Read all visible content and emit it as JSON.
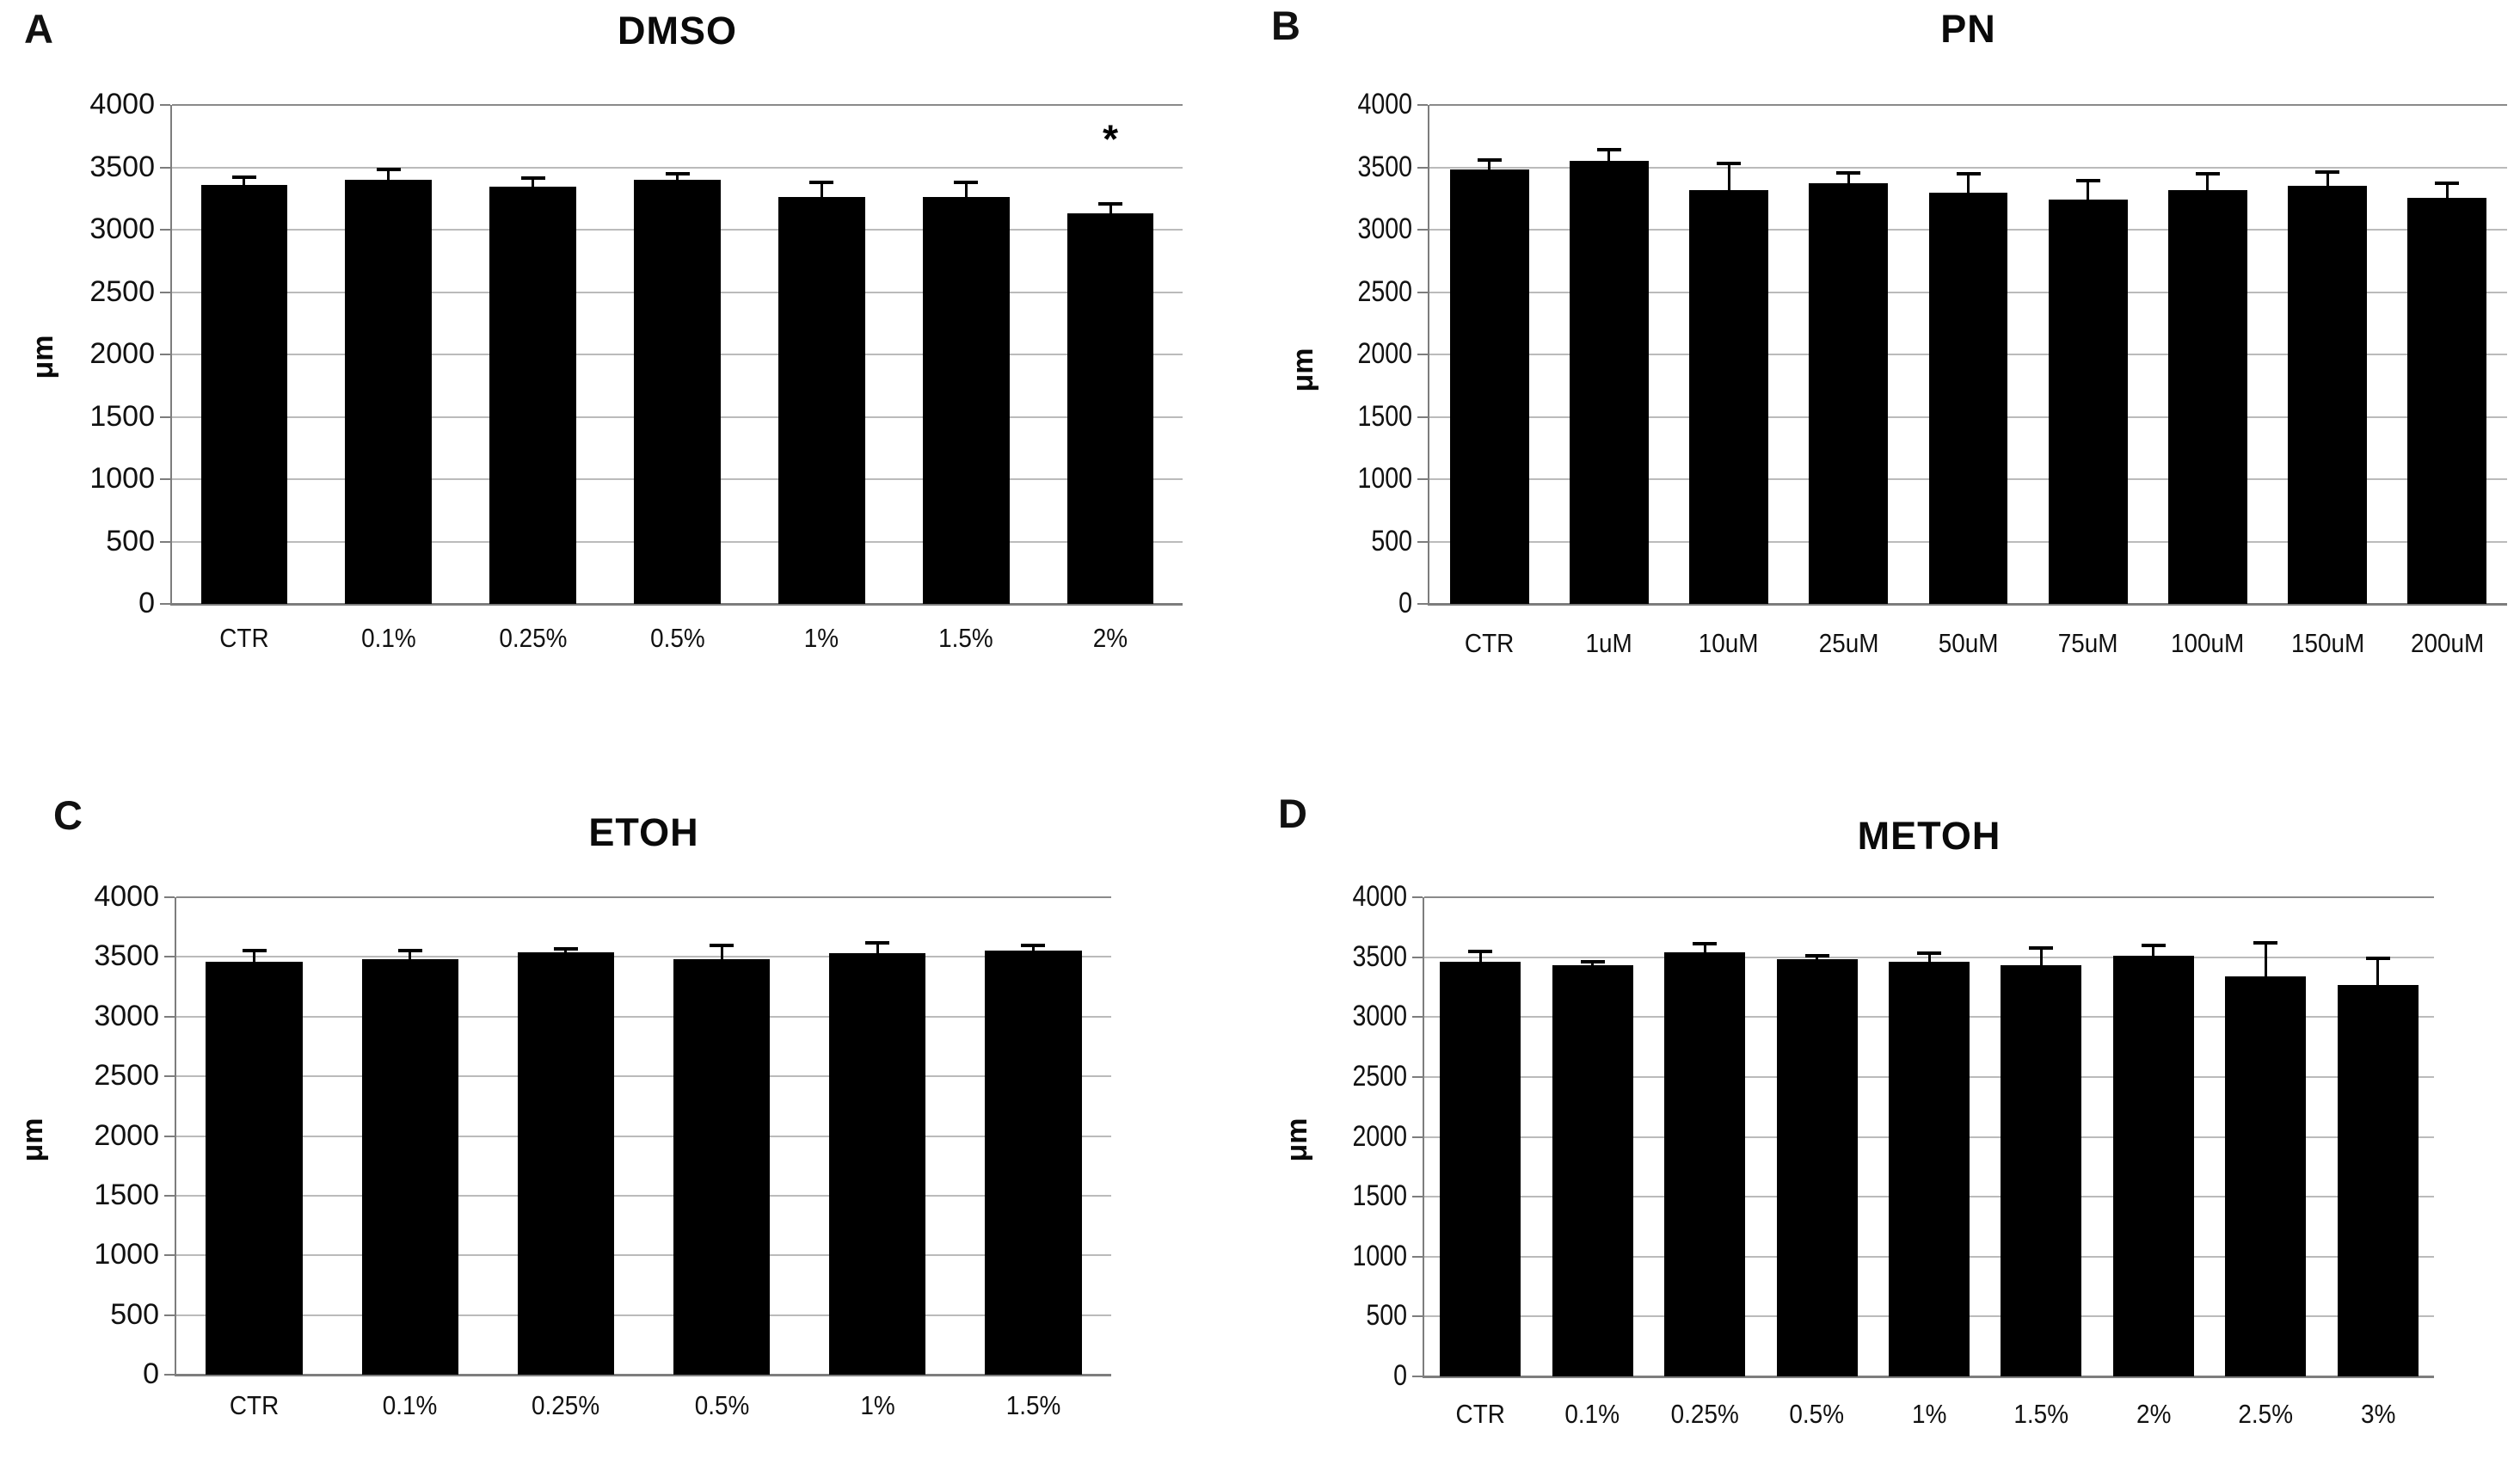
{
  "figure": {
    "y_axis_unit": "μm"
  },
  "chart_data": [
    {
      "type": "bar",
      "letter": "A",
      "title": "DMSO",
      "ylabel": "μm",
      "xlabel": "",
      "ylim": [
        0,
        4000
      ],
      "yticks": [
        0,
        500,
        1000,
        1500,
        2000,
        2500,
        3000,
        3500,
        4000
      ],
      "grid": true,
      "legend": "none",
      "bar_color": "#000000",
      "categories": [
        "CTR",
        "0.1%",
        "0.25%",
        "0.5%",
        "1%",
        "1.5%",
        "2%"
      ],
      "values": [
        3360,
        3400,
        3345,
        3400,
        3265,
        3265,
        3130
      ],
      "errors": [
        60,
        80,
        70,
        45,
        115,
        115,
        80
      ],
      "annotations": [
        {
          "category": "2%",
          "symbol": "*",
          "y": 3700
        }
      ]
    },
    {
      "type": "bar",
      "letter": "B",
      "title": "PN",
      "ylabel": "μm",
      "xlabel": "",
      "ylim": [
        0,
        4000
      ],
      "yticks": [
        0,
        500,
        1000,
        1500,
        2000,
        2500,
        3000,
        3500,
        4000
      ],
      "grid": true,
      "legend": "none",
      "bar_color": "#000000",
      "categories": [
        "CTR",
        "1uM",
        "10uM",
        "25uM",
        "50uM",
        "75uM",
        "100uM",
        "150uM",
        "200uM"
      ],
      "values": [
        3480,
        3550,
        3320,
        3370,
        3295,
        3240,
        3320,
        3350,
        3255
      ],
      "errors": [
        80,
        90,
        210,
        85,
        155,
        150,
        130,
        115,
        115
      ],
      "annotations": []
    },
    {
      "type": "bar",
      "letter": "C",
      "title": "ETOH",
      "ylabel": "μm",
      "xlabel": "",
      "ylim": [
        0,
        4000
      ],
      "yticks": [
        0,
        500,
        1000,
        1500,
        2000,
        2500,
        3000,
        3500,
        4000
      ],
      "grid": true,
      "legend": "none",
      "bar_color": "#000000",
      "categories": [
        "CTR",
        "0.1%",
        "0.25%",
        "0.5%",
        "1%",
        "1.5%"
      ],
      "values": [
        3460,
        3480,
        3540,
        3480,
        3530,
        3550
      ],
      "errors": [
        90,
        75,
        25,
        120,
        90,
        45
      ],
      "annotations": []
    },
    {
      "type": "bar",
      "letter": "D",
      "title": "METOH",
      "ylabel": "μm",
      "xlabel": "",
      "ylim": [
        0,
        4000
      ],
      "yticks": [
        0,
        500,
        1000,
        1500,
        2000,
        2500,
        3000,
        3500,
        4000
      ],
      "grid": true,
      "legend": "none",
      "bar_color": "#000000",
      "categories": [
        "CTR",
        "0.1%",
        "0.25%",
        "0.5%",
        "1%",
        "1.5%",
        "2%",
        "2.5%",
        "3%"
      ],
      "values": [
        3460,
        3430,
        3540,
        3480,
        3460,
        3430,
        3510,
        3340,
        3270
      ],
      "errors": [
        90,
        30,
        70,
        30,
        70,
        145,
        85,
        280,
        220
      ],
      "annotations": []
    }
  ]
}
